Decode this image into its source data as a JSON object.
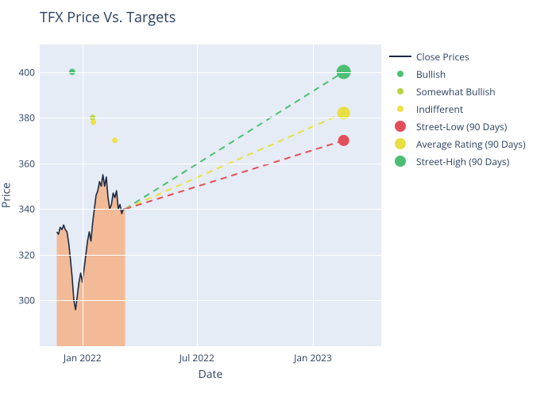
{
  "title": "TFX Price Vs. Targets",
  "axes": {
    "x_label": "Date",
    "y_label": "Price",
    "yticks": [
      300,
      320,
      340,
      360,
      380,
      400
    ],
    "xticks": [
      {
        "label": "Jan 2022",
        "t": 0.125
      },
      {
        "label": "Jul 2022",
        "t": 0.46
      },
      {
        "label": "Jan 2023",
        "t": 0.8
      }
    ],
    "ylim": [
      280,
      412
    ],
    "xlim_t": [
      0,
      1
    ],
    "label_fontsize": 14,
    "tick_fontsize": 12
  },
  "colors": {
    "plot_bg": "#e5ecf6",
    "grid": "#ffffff",
    "text": "#2a3f5f",
    "close_line": "#1d2a42",
    "close_fill": "#f5b186",
    "bullish": "#4bbf73",
    "somewhat_bullish": "#b5d441",
    "indifferent": "#f0e047",
    "street_low": "#e34e5a",
    "avg_rating": "#e8e042",
    "street_high": "#4bbf73"
  },
  "legend": [
    {
      "label": "Close Prices",
      "type": "line",
      "color_key": "close_line"
    },
    {
      "label": "Bullish",
      "type": "dot-small",
      "color_key": "bullish"
    },
    {
      "label": "Somewhat Bullish",
      "type": "dot-small",
      "color_key": "somewhat_bullish"
    },
    {
      "label": "Indifferent",
      "type": "dot-small",
      "color_key": "indifferent"
    },
    {
      "label": "Street-Low (90 Days)",
      "type": "dot-big",
      "color_key": "street_low"
    },
    {
      "label": "Average Rating (90 Days)",
      "type": "dot-big",
      "color_key": "avg_rating"
    },
    {
      "label": "Street-High (90 Days)",
      "type": "dot-big",
      "color_key": "street_high"
    }
  ],
  "close_prices": {
    "t": [
      0.05,
      0.055,
      0.06,
      0.065,
      0.07,
      0.075,
      0.08,
      0.085,
      0.09,
      0.095,
      0.1,
      0.105,
      0.11,
      0.115,
      0.12,
      0.125,
      0.13,
      0.135,
      0.14,
      0.145,
      0.15,
      0.155,
      0.16,
      0.165,
      0.17,
      0.175,
      0.18,
      0.185,
      0.19,
      0.195,
      0.2,
      0.205,
      0.21,
      0.215,
      0.22,
      0.225,
      0.23,
      0.235,
      0.24,
      0.245,
      0.25
    ],
    "y": [
      330,
      329,
      332,
      331,
      333,
      331,
      330,
      325,
      318,
      310,
      300,
      296,
      302,
      308,
      312,
      308,
      314,
      320,
      326,
      330,
      326,
      334,
      340,
      346,
      348,
      352,
      350,
      355,
      350,
      354,
      345,
      340,
      342,
      347,
      345,
      348,
      340,
      342,
      338,
      340,
      340
    ]
  },
  "rating_points": [
    {
      "t": 0.095,
      "y": 400,
      "color_key": "bullish",
      "size": 8
    },
    {
      "t": 0.155,
      "y": 380,
      "color_key": "somewhat_bullish",
      "size": 7
    },
    {
      "t": 0.157,
      "y": 378,
      "color_key": "indifferent",
      "size": 7
    },
    {
      "t": 0.22,
      "y": 370,
      "color_key": "indifferent",
      "size": 7
    }
  ],
  "target_lines": [
    {
      "from": {
        "t": 0.25,
        "y": 340
      },
      "to": {
        "t": 0.89,
        "y": 400
      },
      "color_key": "street_high",
      "marker_color_key": "street_high",
      "marker_size": 18
    },
    {
      "from": {
        "t": 0.25,
        "y": 340
      },
      "to": {
        "t": 0.89,
        "y": 382
      },
      "color_key": "avg_rating",
      "marker_color_key": "avg_rating",
      "marker_size": 16
    },
    {
      "from": {
        "t": 0.25,
        "y": 340
      },
      "to": {
        "t": 0.89,
        "y": 370
      },
      "color_key": "street_low",
      "marker_color_key": "street_low",
      "marker_size": 14
    }
  ],
  "dash_pattern": "8,6",
  "line_width": 2,
  "close_line_width": 1.6
}
